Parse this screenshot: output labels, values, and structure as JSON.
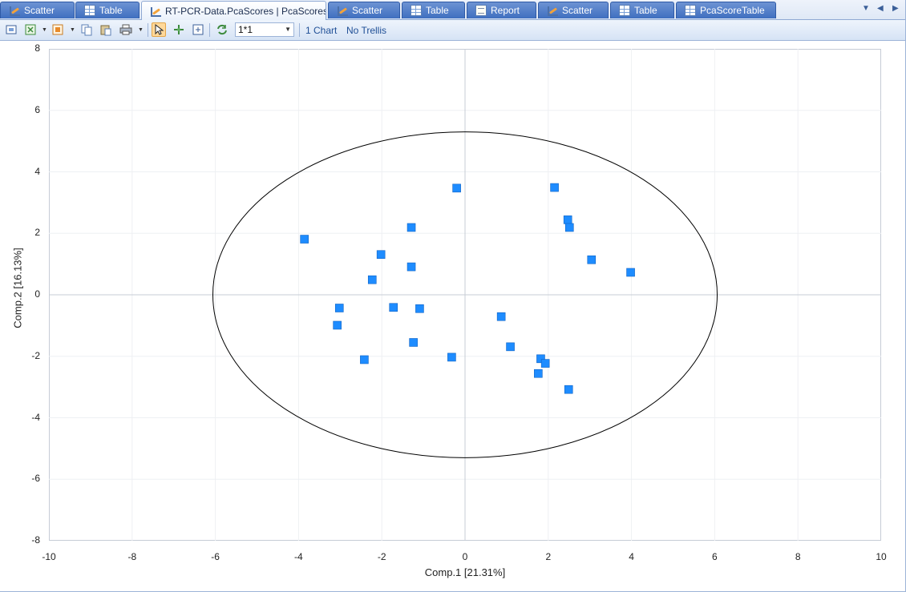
{
  "tabs": [
    {
      "label": "Scatter",
      "icon": "scatter-icon"
    },
    {
      "label": "Table",
      "icon": "table-icon"
    },
    {
      "label": "RT-PCR-Data.PcaScores | PcaScores",
      "icon": "scatter-icon",
      "active": true,
      "close": "x"
    },
    {
      "label": "Scatter",
      "icon": "scatter-icon"
    },
    {
      "label": "Table",
      "icon": "table-icon"
    },
    {
      "label": "Report",
      "icon": "report-icon"
    },
    {
      "label": "Scatter",
      "icon": "scatter-icon"
    },
    {
      "label": "Table",
      "icon": "table-icon"
    },
    {
      "label": "PcaScoreTable",
      "icon": "table-icon"
    }
  ],
  "tab_nav": {
    "menu": "▼",
    "prev": "◀",
    "next": "▶"
  },
  "toolbar": {
    "icons": [
      "fit-screen-icon",
      "excel-export-icon",
      "image-export-icon",
      "copy-icon",
      "paste-icon",
      "print-icon",
      "select-pointer-icon",
      "pan-icon",
      "zoom-fit-icon",
      "refresh-icon"
    ],
    "layout_value": "1*1",
    "chart_count_label": "1 Chart",
    "trellis_label": "No Trellis"
  },
  "colors": {
    "points": "#1e8cff",
    "ellipse": "#000000",
    "tab_active_text": "#1b2d4f",
    "accent": "#3f6fc0"
  },
  "chart_data": {
    "type": "scatter",
    "title": "",
    "xlabel": "Comp.1 [21.31%]",
    "ylabel": "Comp.2 [16.13%]",
    "xlim": [
      -10,
      10
    ],
    "ylim": [
      -8,
      8
    ],
    "xticks": [
      -10,
      -8,
      -6,
      -4,
      -2,
      0,
      2,
      4,
      6,
      8,
      10
    ],
    "yticks": [
      8,
      6,
      4,
      2,
      0,
      -2,
      -4,
      -6,
      -8
    ],
    "grid": true,
    "legend": "none",
    "zero_lines": true,
    "marker": "square",
    "ellipse": {
      "center": [
        0,
        0
      ],
      "rx": 6.06,
      "ry": 5.3
    },
    "points": [
      [
        -3.86,
        1.81
      ],
      [
        -2.02,
        1.31
      ],
      [
        -2.23,
        0.49
      ],
      [
        -1.29,
        0.91
      ],
      [
        -1.29,
        2.19
      ],
      [
        -0.2,
        3.47
      ],
      [
        -3.02,
        -0.43
      ],
      [
        -3.07,
        -0.99
      ],
      [
        -1.72,
        -0.41
      ],
      [
        -1.09,
        -0.45
      ],
      [
        -2.42,
        -2.11
      ],
      [
        -1.24,
        -1.55
      ],
      [
        -0.32,
        -2.03
      ],
      [
        0.87,
        -0.71
      ],
      [
        1.09,
        -1.69
      ],
      [
        1.82,
        -2.08
      ],
      [
        1.93,
        -2.23
      ],
      [
        1.76,
        -2.56
      ],
      [
        2.49,
        -3.08
      ],
      [
        2.15,
        3.49
      ],
      [
        2.47,
        2.44
      ],
      [
        2.51,
        2.19
      ],
      [
        3.04,
        1.14
      ],
      [
        3.98,
        0.73
      ]
    ]
  }
}
